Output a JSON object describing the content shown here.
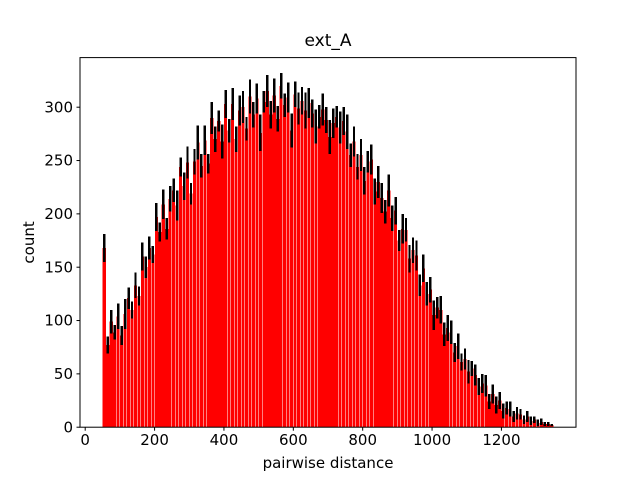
{
  "chart_data": {
    "type": "bar",
    "title": "ext_A",
    "xlabel": "pairwise distance",
    "ylabel": "count",
    "bar_color": "#ff0000",
    "error_bar_color": "#000000",
    "axis_color": "#000000",
    "background_color": "#ffffff",
    "grid": false,
    "legend": null,
    "xlim": [
      -15,
      1415
    ],
    "ylim": [
      0,
      346.5
    ],
    "xticks": [
      0,
      200,
      400,
      600,
      800,
      1000,
      1200
    ],
    "yticks": [
      0,
      50,
      100,
      150,
      200,
      250,
      300
    ],
    "bins": {
      "start": 50,
      "width": 10,
      "count": 130,
      "bar_data_width": 9
    },
    "heights": [
      168,
      77,
      99,
      89,
      104,
      86,
      106,
      121,
      110,
      133,
      123,
      160,
      150,
      168,
      162,
      197,
      183,
      209,
      186,
      214,
      222,
      208,
      244,
      226,
      248,
      219,
      249,
      267,
      245,
      269,
      247,
      290,
      270,
      287,
      268,
      303,
      278,
      303,
      270,
      297,
      300,
      280,
      310,
      293,
      308,
      276,
      305,
      315,
      293,
      311,
      289,
      320,
      302,
      309,
      278,
      312,
      299,
      306,
      297,
      304,
      294,
      282,
      291,
      298,
      288,
      272,
      285,
      291,
      281,
      287,
      277,
      255,
      268,
      244,
      255,
      231,
      249,
      251,
      221,
      230,
      215,
      202,
      222,
      196,
      203,
      175,
      186,
      185,
      158,
      166,
      161,
      133,
      149,
      125,
      129,
      105,
      112,
      110,
      87,
      93,
      89,
      70,
      76,
      61,
      64,
      52,
      55,
      49,
      38,
      41,
      39,
      24,
      31,
      21,
      25,
      15,
      18,
      17,
      10,
      13,
      12,
      7,
      10,
      6,
      7,
      4,
      5,
      3,
      3,
      2
    ],
    "errors": [
      13,
      8,
      11,
      7,
      12,
      9,
      14,
      10,
      8,
      12,
      9,
      13,
      10,
      11,
      8,
      13,
      9,
      14,
      10,
      12,
      11,
      14,
      9,
      13,
      15,
      10,
      12,
      16,
      11,
      14,
      9,
      15,
      12,
      10,
      16,
      13,
      11,
      15,
      12,
      14,
      15,
      11,
      16,
      12,
      14,
      17,
      10,
      15,
      13,
      16,
      12,
      12,
      11,
      14,
      16,
      12,
      15,
      13,
      17,
      14,
      13,
      16,
      11,
      15,
      12,
      16,
      14,
      10,
      15,
      13,
      16,
      11,
      14,
      12,
      15,
      13,
      10,
      14,
      12,
      15,
      14,
      11,
      15,
      12,
      13,
      10,
      14,
      11,
      13,
      12,
      14,
      10,
      13,
      11,
      12,
      14,
      10,
      13,
      11,
      12,
      11,
      9,
      12,
      8,
      10,
      11,
      7,
      10,
      8,
      9,
      10,
      7,
      9,
      8,
      8,
      7,
      6,
      7,
      5,
      6,
      5,
      4,
      5,
      4,
      3,
      3,
      3,
      2,
      2,
      1
    ]
  }
}
